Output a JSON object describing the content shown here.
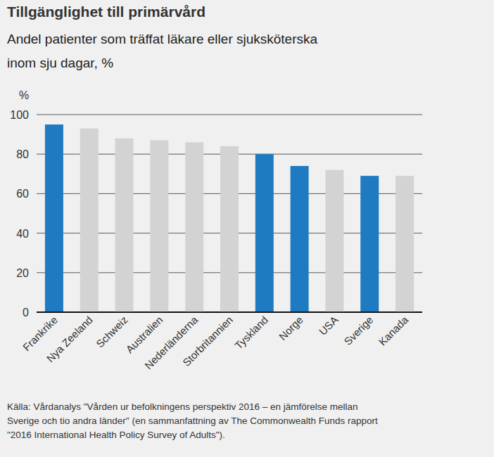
{
  "chart_data": {
    "type": "bar",
    "title": "Tillgänglighet till primärvård",
    "subtitle": [
      "Andel patienter som träffat läkare eller sjuksköterska",
      "inom sju dagar, %"
    ],
    "y_label": "%",
    "categories": [
      "Frankrike",
      "Nya Zeeland",
      "Schweiz",
      "Australien",
      "Nederländerna",
      "Storbritannien",
      "Tyskland",
      "Norge",
      "USA",
      "Sverige",
      "Kanada"
    ],
    "values": [
      95,
      93,
      88,
      87,
      86,
      84,
      80,
      74,
      72,
      69,
      69
    ],
    "colors": [
      "#1f7bc1",
      "#d3d3d3",
      "#d3d3d3",
      "#d3d3d3",
      "#d3d3d3",
      "#d3d3d3",
      "#1f7bc1",
      "#1f7bc1",
      "#d3d3d3",
      "#1f7bc1",
      "#d3d3d3"
    ],
    "ylim": [
      0,
      100
    ],
    "yticks": [
      0,
      20,
      40,
      60,
      80,
      100
    ],
    "grid": true,
    "source": [
      "Källa: Vårdanalys \"Vården ur befolkningens perspektiv 2016 – en jämförelse mellan",
      "Sverige och tio andra länder\" (en sammanfattning av The Commonwealth Funds rapport",
      "\"2016 International Health Policy Survey of Adults\")."
    ]
  }
}
